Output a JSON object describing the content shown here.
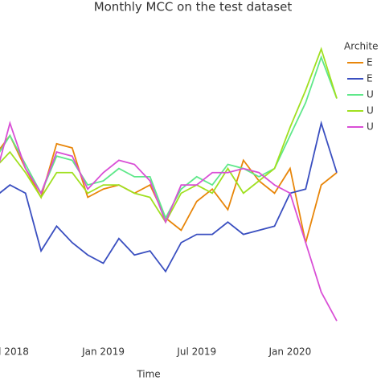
{
  "chart_data": {
    "type": "line",
    "title": "Monthly MCC on the test dataset",
    "x_label": "Time",
    "legend_title": "Archite",
    "legend": "right",
    "x": [
      "2018-06",
      "2018-07",
      "2018-08",
      "2018-09",
      "2018-10",
      "2018-11",
      "2018-12",
      "2019-01",
      "2019-02",
      "2019-03",
      "2019-04",
      "2019-05",
      "2019-06",
      "2019-07",
      "2019-08",
      "2019-09",
      "2019-10",
      "2019-11",
      "2019-12",
      "2020-01",
      "2020-02",
      "2020-03",
      "2020-04"
    ],
    "xlim": [
      "2018-06",
      "2020-04"
    ],
    "xticks": [
      {
        "value": "2018-07",
        "label": "l 2018"
      },
      {
        "value": "2019-01",
        "label": "Jan 2019"
      },
      {
        "value": "2019-07",
        "label": "Jul 2019"
      },
      {
        "value": "2020-01",
        "label": "Jan 2020"
      }
    ],
    "ylim": [
      0.1,
      0.9
    ],
    "series": [
      {
        "name": "E",
        "color": "#e8860a",
        "values": [
          0.56,
          0.61,
          0.53,
          0.46,
          0.59,
          0.58,
          0.46,
          0.48,
          0.49,
          0.47,
          0.49,
          0.41,
          0.38,
          0.45,
          0.48,
          0.43,
          0.55,
          0.5,
          0.47,
          0.53,
          0.35,
          0.49,
          0.52
        ]
      },
      {
        "name": "E",
        "color": "#3a4fc0",
        "values": [
          0.46,
          0.49,
          0.47,
          0.33,
          0.39,
          0.35,
          0.32,
          0.3,
          0.36,
          0.32,
          0.33,
          0.28,
          0.35,
          0.37,
          0.37,
          0.4,
          0.37,
          0.38,
          0.39,
          0.47,
          0.48,
          0.64,
          0.52
        ]
      },
      {
        "name": "U",
        "color": "#5fe88a",
        "values": [
          0.55,
          0.61,
          0.54,
          0.47,
          0.56,
          0.55,
          0.49,
          0.5,
          0.53,
          0.51,
          0.51,
          0.41,
          0.48,
          0.51,
          0.49,
          0.54,
          0.53,
          0.51,
          0.53,
          0.61,
          0.69,
          0.8,
          0.7
        ]
      },
      {
        "name": "U",
        "color": "#a0e020",
        "values": [
          0.53,
          0.57,
          0.52,
          0.46,
          0.52,
          0.52,
          0.47,
          0.49,
          0.49,
          0.47,
          0.46,
          0.4,
          0.47,
          0.49,
          0.47,
          0.53,
          0.47,
          0.5,
          0.53,
          0.63,
          0.72,
          0.82,
          0.7
        ]
      },
      {
        "name": "U",
        "color": "#d94fd6",
        "values": [
          0.5,
          0.64,
          0.53,
          0.47,
          0.57,
          0.56,
          0.48,
          0.52,
          0.55,
          0.54,
          0.5,
          0.4,
          0.49,
          0.49,
          0.52,
          0.52,
          0.53,
          0.52,
          0.49,
          0.47,
          0.35,
          0.23,
          0.16
        ]
      }
    ]
  }
}
